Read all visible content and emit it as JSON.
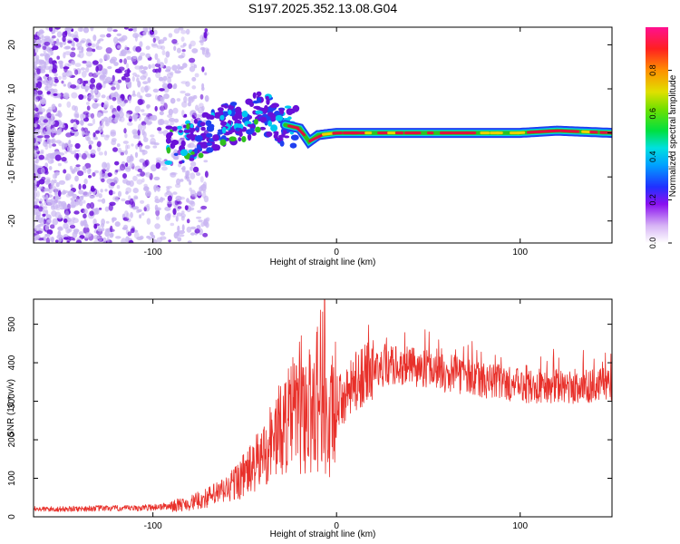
{
  "title": "S197.2025.352.13.08.G04",
  "colors": {
    "snr_line": "#e8302a",
    "ridge_core": "#e01040",
    "ridge_mid": "#30c020",
    "ridge_outer": "#2040f0",
    "scatter_dark": "#6a10d8",
    "scatter_light": "#c9b6f2"
  },
  "chart_data": [
    {
      "type": "heatmap",
      "name": "spectrogram",
      "xlabel": "Height of straight line (km)",
      "ylabel": "Frequency (Hz)",
      "xlim": [
        -165,
        150
      ],
      "ylim": [
        -25,
        24
      ],
      "xticks": [
        -100,
        0,
        100
      ],
      "yticks": [
        -20,
        -10,
        0,
        10,
        20
      ],
      "ridge": {
        "x": [
          -90,
          -80,
          -70,
          -60,
          -50,
          -45,
          -40,
          -35,
          -30,
          -25,
          -20,
          -15,
          -10,
          0,
          20,
          40,
          60,
          80,
          100,
          120,
          150
        ],
        "freq": [
          -3,
          -2,
          0,
          2,
          3,
          4,
          5,
          3,
          2,
          1.5,
          1,
          -2,
          -0.5,
          0,
          0,
          0,
          0,
          0,
          0,
          0.5,
          0
        ]
      },
      "colorbar": {
        "label": "Normalized spectral amplitude",
        "range": [
          0,
          1
        ],
        "ticks": [
          0.0,
          0.2,
          0.4,
          0.6,
          0.8
        ]
      }
    },
    {
      "type": "line",
      "name": "snr",
      "xlabel": "Height of straight line (km)",
      "ylabel": "SNR (10 * v/v)",
      "xlim": [
        -165,
        150
      ],
      "ylim": [
        0,
        565
      ],
      "xticks": [
        -100,
        0,
        100
      ],
      "yticks": [
        0,
        100,
        200,
        300,
        400,
        500
      ],
      "series": [
        {
          "name": "SNR",
          "x": [
            -165,
            -150,
            -130,
            -110,
            -100,
            -90,
            -80,
            -70,
            -60,
            -50,
            -45,
            -40,
            -35,
            -30,
            -25,
            -20,
            -15,
            -10,
            -7,
            -5,
            0,
            5,
            10,
            20,
            30,
            40,
            50,
            60,
            70,
            80,
            90,
            100,
            110,
            120,
            130,
            140,
            150
          ],
          "values": [
            20,
            20,
            22,
            22,
            25,
            28,
            35,
            50,
            70,
            110,
            130,
            160,
            200,
            230,
            260,
            300,
            270,
            330,
            350,
            200,
            300,
            310,
            350,
            380,
            395,
            390,
            380,
            370,
            365,
            355,
            345,
            340,
            335,
            340,
            335,
            340,
            345
          ]
        }
      ]
    }
  ]
}
